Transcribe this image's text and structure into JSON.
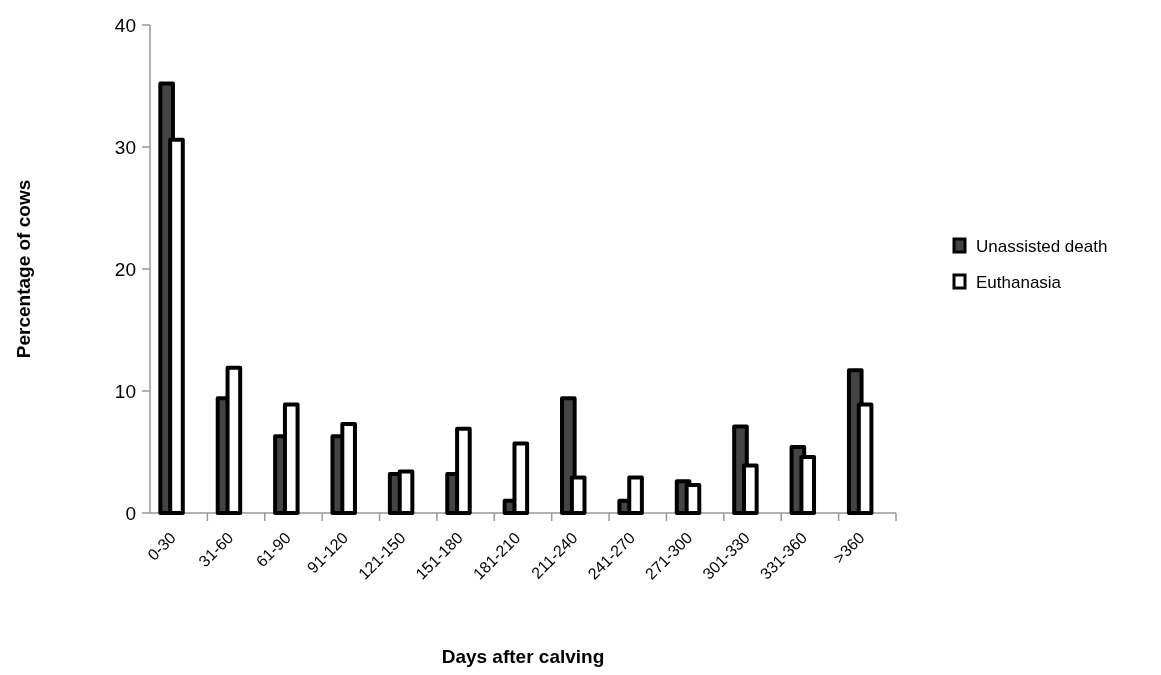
{
  "chart_data": {
    "type": "bar",
    "xlabel": "Days after calving",
    "ylabel": "Percentage of cows",
    "categories": [
      "0-30",
      "31-60",
      "61-90",
      "91-120",
      "121-150",
      "151-180",
      "181-210",
      "211-240",
      "241-270",
      "271-300",
      "301-330",
      "331-360",
      ">360"
    ],
    "series": [
      {
        "name": "Unassisted death",
        "color": "#444444",
        "values": [
          35.2,
          9.4,
          6.3,
          6.3,
          3.2,
          3.2,
          1.0,
          9.4,
          1.0,
          2.6,
          7.1,
          5.4,
          11.7
        ]
      },
      {
        "name": "Euthanasia",
        "color": "#ffffff",
        "values": [
          30.6,
          11.9,
          8.9,
          7.3,
          3.4,
          6.9,
          5.7,
          2.9,
          2.9,
          2.3,
          3.9,
          4.6,
          8.9
        ]
      }
    ],
    "ylim": [
      0,
      40
    ],
    "yticks": [
      0,
      10,
      20,
      30,
      40
    ],
    "legend": "right"
  }
}
